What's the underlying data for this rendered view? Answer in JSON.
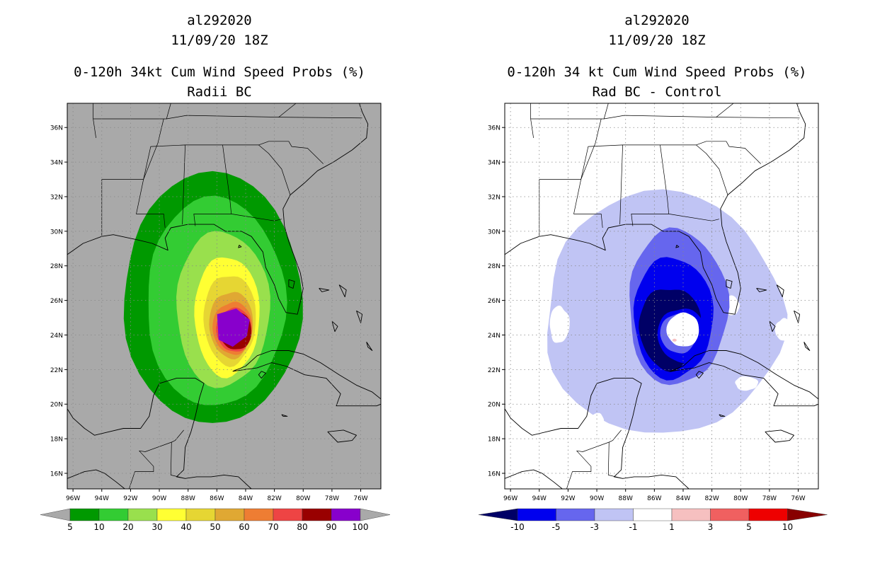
{
  "left_panel": {
    "storm_id": "al292020",
    "datetime": "11/09/20 18Z",
    "title": "0-120h 34kt Cum Wind Speed Probs (%)",
    "subtitle": "Radii BC",
    "background_color": "#a9a9a9",
    "colorbar": {
      "labels": [
        "5",
        "10",
        "20",
        "30",
        "40",
        "50",
        "60",
        "70",
        "80",
        "90",
        "100"
      ],
      "colors": [
        "#009900",
        "#33cc33",
        "#99e04d",
        "#ffff33",
        "#e6d633",
        "#e0a833",
        "#ee7d33",
        "#ee4444",
        "#990000",
        "#8800cc"
      ]
    }
  },
  "right_panel": {
    "storm_id": "al292020",
    "datetime": "11/09/20 18Z",
    "title": "0-120h 34 kt Cum Wind Speed Probs (%)",
    "subtitle": "Rad BC - Control",
    "background_color": "#ffffff",
    "colorbar": {
      "labels": [
        "-10",
        "-5",
        "-3",
        "-1",
        "1",
        "3",
        "5",
        "10"
      ],
      "colors": [
        "#000066",
        "#0000ee",
        "#6666ee",
        "#c0c4f4",
        "#ffffff",
        "#f6c0c0",
        "#f06060",
        "#ee0000",
        "#880000"
      ]
    }
  },
  "axes": {
    "lat_labels": [
      "36N",
      "34N",
      "32N",
      "30N",
      "28N",
      "26N",
      "24N",
      "22N",
      "20N",
      "18N",
      "16N"
    ],
    "lon_labels": [
      "96W",
      "94W",
      "92W",
      "90W",
      "88W",
      "86W",
      "84W",
      "82W",
      "80W",
      "78W",
      "76W"
    ]
  }
}
